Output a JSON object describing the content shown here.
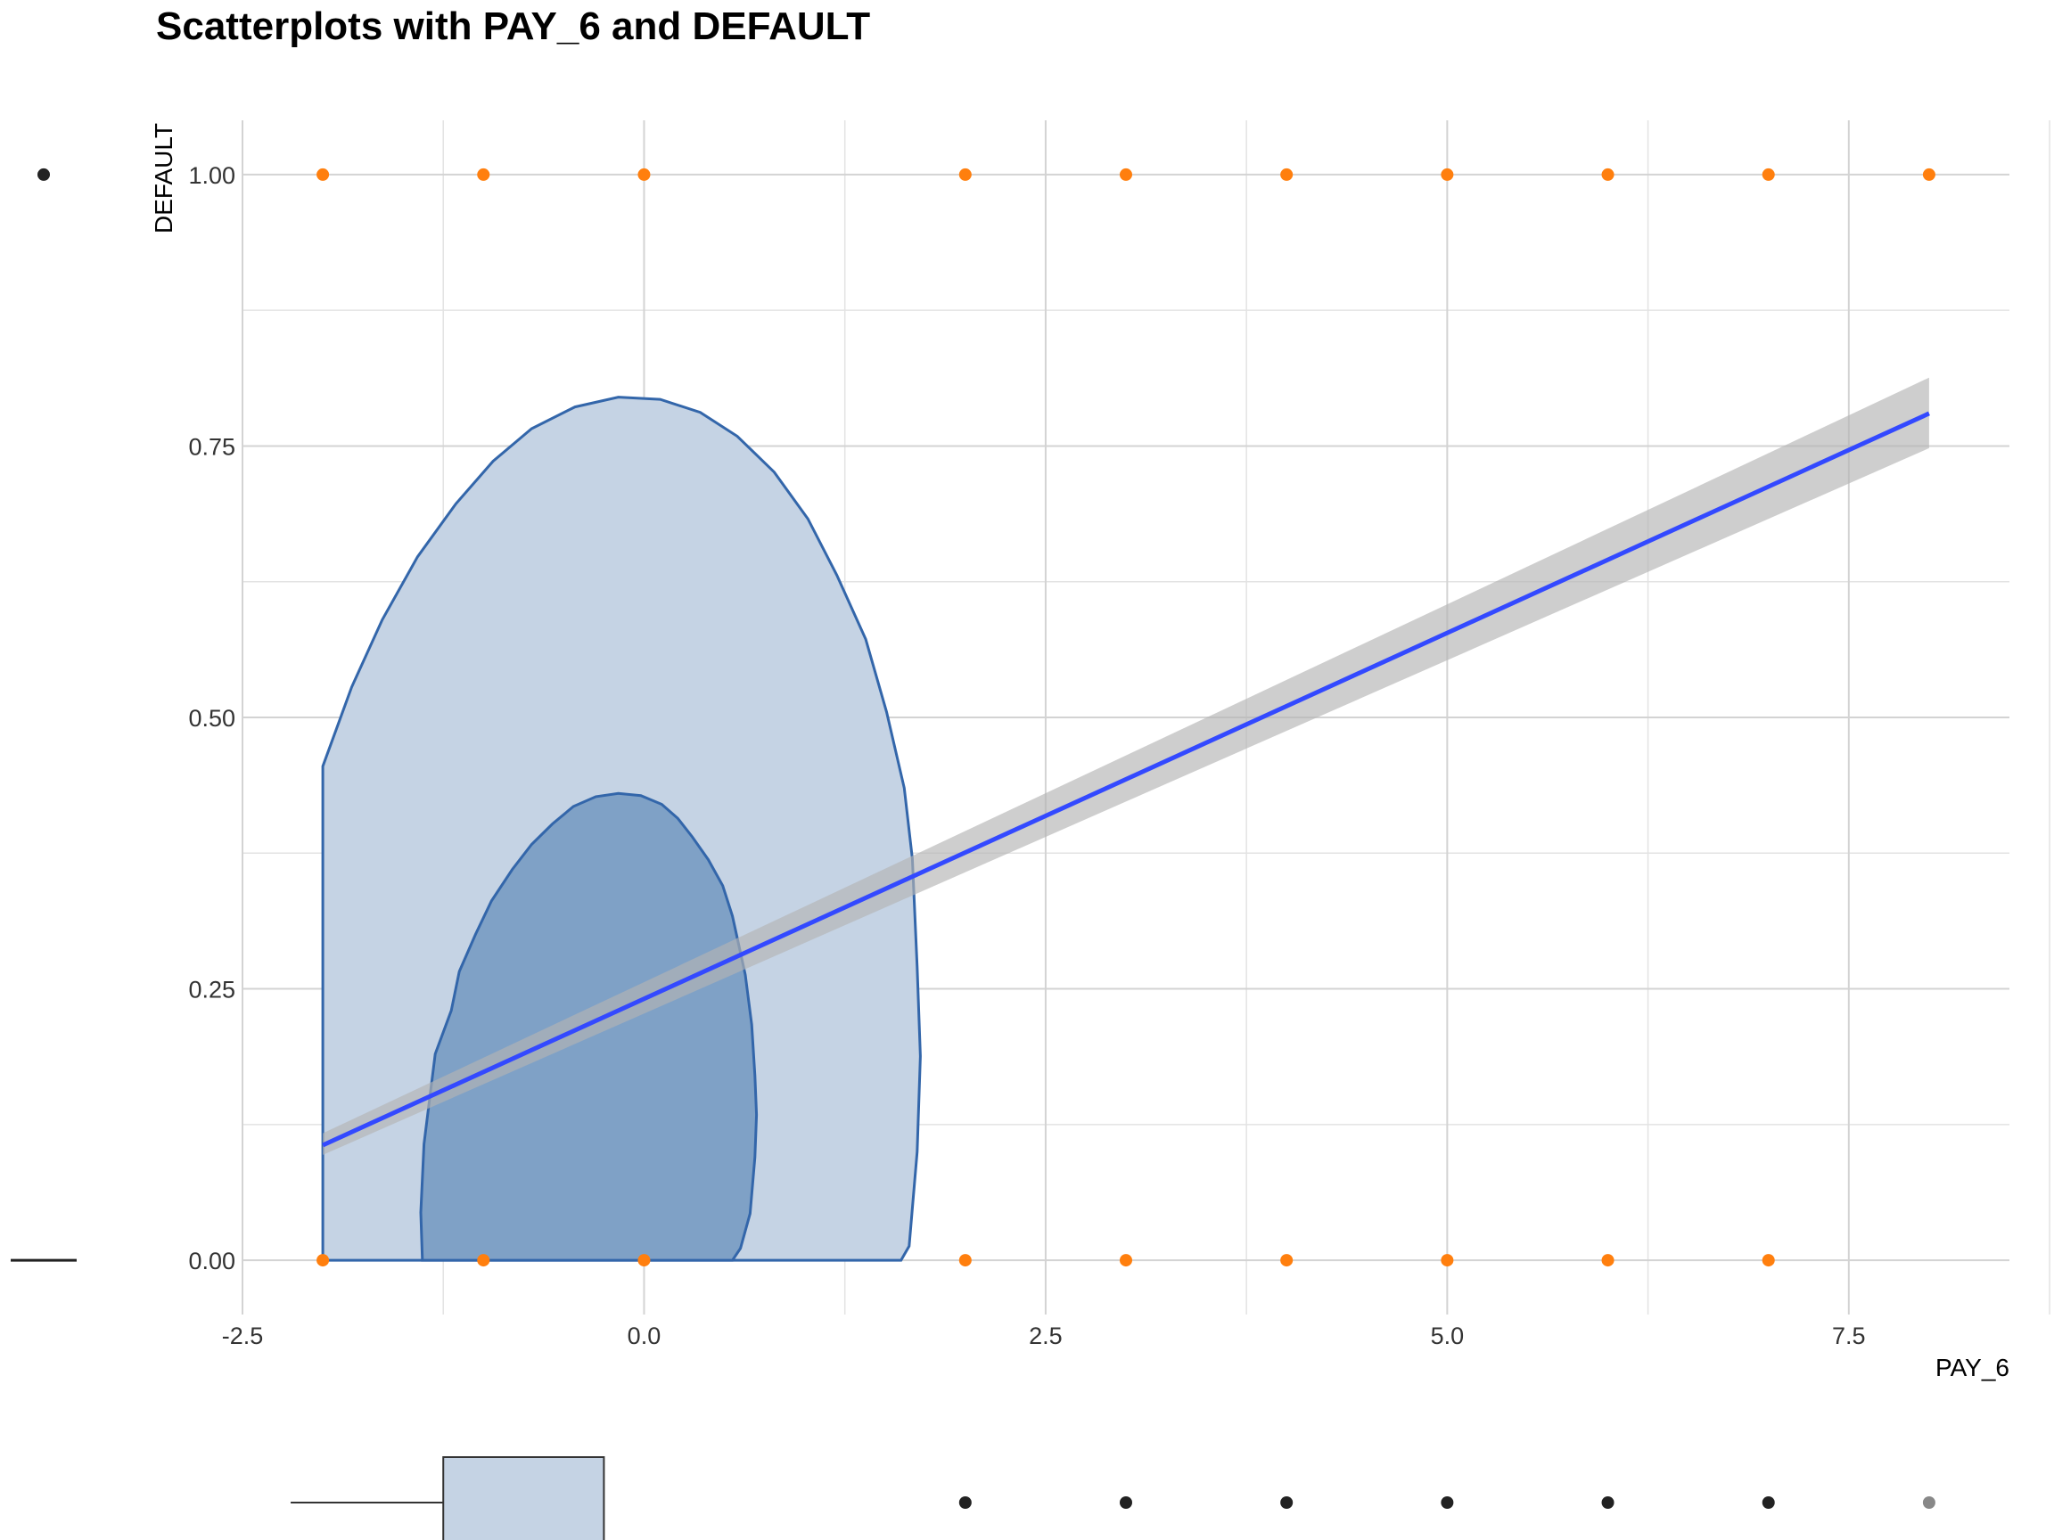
{
  "chart_data": {
    "type": "scatter",
    "title": "Scatterplots with PAY_6 and DEFAULT",
    "xlabel": "PAY_6",
    "ylabel": "DEFAULT",
    "xlim": [
      -2.5,
      8.5
    ],
    "ylim": [
      -0.05,
      1.05
    ],
    "x_ticks": [
      "-2.5",
      "0.0",
      "2.5",
      "5.0",
      "7.5"
    ],
    "y_ticks": [
      "0.00",
      "0.25",
      "0.50",
      "0.75",
      "1.00"
    ],
    "grid": true,
    "point_color": "#ff7f0e",
    "points": [
      {
        "x": -2,
        "y": 1
      },
      {
        "x": -1,
        "y": 1
      },
      {
        "x": 0,
        "y": 1
      },
      {
        "x": 2,
        "y": 1
      },
      {
        "x": 3,
        "y": 1
      },
      {
        "x": 4,
        "y": 1
      },
      {
        "x": 5,
        "y": 1
      },
      {
        "x": 6,
        "y": 1
      },
      {
        "x": 7,
        "y": 1
      },
      {
        "x": 8,
        "y": 1
      },
      {
        "x": -2,
        "y": 0
      },
      {
        "x": -1,
        "y": 0
      },
      {
        "x": 0,
        "y": 0
      },
      {
        "x": 2,
        "y": 0
      },
      {
        "x": 3,
        "y": 0
      },
      {
        "x": 4,
        "y": 0
      },
      {
        "x": 5,
        "y": 0
      },
      {
        "x": 6,
        "y": 0
      },
      {
        "x": 7,
        "y": 0
      }
    ],
    "regression_line": {
      "color": "#3349ff",
      "band_color": "#b3b3b3",
      "x": [
        -2,
        8
      ],
      "y": [
        0.106,
        0.78
      ],
      "lower": [
        0.097,
        0.748
      ],
      "upper": [
        0.117,
        0.813
      ]
    },
    "density_outer": {
      "color": "#c5d3e4",
      "stroke": "#3366aa",
      "points": [
        [
          -2,
          0
        ],
        [
          -2,
          0.455
        ],
        [
          -1.82,
          0.528
        ],
        [
          -1.63,
          0.59
        ],
        [
          -1.41,
          0.648
        ],
        [
          -1.17,
          0.697
        ],
        [
          -0.94,
          0.736
        ],
        [
          -0.7,
          0.766
        ],
        [
          -0.43,
          0.786
        ],
        [
          -0.16,
          0.795
        ],
        [
          0.1,
          0.793
        ],
        [
          0.35,
          0.781
        ],
        [
          0.58,
          0.759
        ],
        [
          0.81,
          0.726
        ],
        [
          1.02,
          0.683
        ],
        [
          1.2,
          0.631
        ],
        [
          1.38,
          0.572
        ],
        [
          1.51,
          0.505
        ],
        [
          1.62,
          0.435
        ],
        [
          1.67,
          0.37
        ],
        [
          1.7,
          0.27
        ],
        [
          1.72,
          0.188
        ],
        [
          1.7,
          0.1
        ],
        [
          1.65,
          0.013
        ],
        [
          1.6,
          0
        ]
      ]
    },
    "density_inner": {
      "color": "#7fa1c6",
      "stroke": "#3366aa",
      "points": [
        [
          -1.38,
          0
        ],
        [
          -1.39,
          0.044
        ],
        [
          -1.37,
          0.107
        ],
        [
          -1.3,
          0.19
        ],
        [
          -1.2,
          0.23
        ],
        [
          -1.15,
          0.266
        ],
        [
          -1.05,
          0.3
        ],
        [
          -0.95,
          0.331
        ],
        [
          -0.82,
          0.36
        ],
        [
          -0.7,
          0.383
        ],
        [
          -0.57,
          0.402
        ],
        [
          -0.44,
          0.418
        ],
        [
          -0.3,
          0.427
        ],
        [
          -0.16,
          0.43
        ],
        [
          -0.02,
          0.428
        ],
        [
          0.11,
          0.42
        ],
        [
          0.21,
          0.407
        ],
        [
          0.3,
          0.39
        ],
        [
          0.4,
          0.369
        ],
        [
          0.49,
          0.345
        ],
        [
          0.55,
          0.317
        ],
        [
          0.63,
          0.263
        ],
        [
          0.67,
          0.217
        ],
        [
          0.69,
          0.17
        ],
        [
          0.7,
          0.134
        ],
        [
          0.69,
          0.095
        ],
        [
          0.66,
          0.043
        ],
        [
          0.6,
          0.011
        ],
        [
          0.55,
          0
        ]
      ]
    },
    "legend_markers": {
      "left_dot_y": 1,
      "left_line_y": 0,
      "bottom_box": {
        "x": [
          -1.25,
          -0.25
        ]
      },
      "bottom_whisker_x": [
        -2.2,
        -1.25
      ],
      "bottom_dots_x": [
        2,
        3,
        4,
        5,
        6,
        7,
        8
      ]
    }
  }
}
